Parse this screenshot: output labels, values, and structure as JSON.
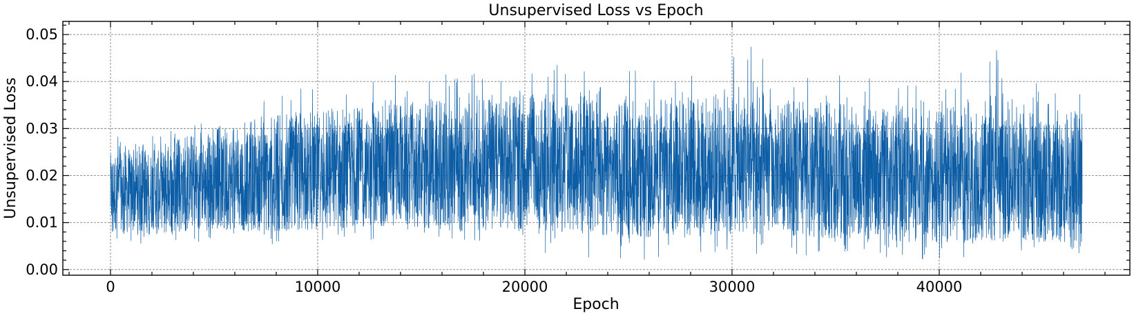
{
  "chart_data": {
    "type": "line",
    "title": "Unsupervised Loss vs Epoch",
    "xlabel": "Epoch",
    "ylabel": "Unsupervised Loss",
    "xlim": [
      -2300,
      49200
    ],
    "ylim": [
      -0.0012,
      0.0528
    ],
    "x_ticks": [
      0,
      10000,
      20000,
      30000,
      40000
    ],
    "x_tick_labels": [
      "0",
      "10000",
      "20000",
      "30000",
      "40000"
    ],
    "y_ticks": [
      0.0,
      0.01,
      0.02,
      0.03,
      0.04,
      0.05
    ],
    "y_tick_labels": [
      "0.00",
      "0.01",
      "0.02",
      "0.03",
      "0.04",
      "0.05"
    ],
    "grid": true,
    "line_color": "#0C5DA5",
    "series": [
      {
        "x_range": [
          0,
          46900
        ],
        "num_points": 46900,
        "envelope": [
          {
            "x": 0,
            "mean": 0.0165,
            "lower": 0.0085,
            "upper": 0.0245,
            "min": 0.006,
            "max": 0.029
          },
          {
            "x": 2000,
            "mean": 0.016,
            "lower": 0.0085,
            "upper": 0.025,
            "min": 0.005,
            "max": 0.031
          },
          {
            "x": 4000,
            "mean": 0.0175,
            "lower": 0.0095,
            "upper": 0.027,
            "min": 0.0055,
            "max": 0.032
          },
          {
            "x": 6000,
            "mean": 0.0185,
            "lower": 0.0095,
            "upper": 0.029,
            "min": 0.006,
            "max": 0.036
          },
          {
            "x": 8000,
            "mean": 0.019,
            "lower": 0.0095,
            "upper": 0.03,
            "min": 0.005,
            "max": 0.039
          },
          {
            "x": 10000,
            "mean": 0.0195,
            "lower": 0.01,
            "upper": 0.031,
            "min": 0.006,
            "max": 0.04
          },
          {
            "x": 12000,
            "mean": 0.0195,
            "lower": 0.0105,
            "upper": 0.032,
            "min": 0.006,
            "max": 0.041
          },
          {
            "x": 14000,
            "mean": 0.0195,
            "lower": 0.011,
            "upper": 0.033,
            "min": 0.0065,
            "max": 0.044
          },
          {
            "x": 16000,
            "mean": 0.0205,
            "lower": 0.0105,
            "upper": 0.033,
            "min": 0.004,
            "max": 0.042
          },
          {
            "x": 18000,
            "mean": 0.0205,
            "lower": 0.0105,
            "upper": 0.034,
            "min": 0.004,
            "max": 0.044
          },
          {
            "x": 20000,
            "mean": 0.0205,
            "lower": 0.0105,
            "upper": 0.034,
            "min": 0.004,
            "max": 0.043
          },
          {
            "x": 22000,
            "mean": 0.02,
            "lower": 0.0105,
            "upper": 0.034,
            "min": 0.003,
            "max": 0.044
          },
          {
            "x": 24000,
            "mean": 0.0195,
            "lower": 0.01,
            "upper": 0.033,
            "min": 0.002,
            "max": 0.042
          },
          {
            "x": 26000,
            "mean": 0.0195,
            "lower": 0.0095,
            "upper": 0.033,
            "min": 0.002,
            "max": 0.043
          },
          {
            "x": 28000,
            "mean": 0.02,
            "lower": 0.0095,
            "upper": 0.034,
            "min": 0.003,
            "max": 0.042
          },
          {
            "x": 30000,
            "mean": 0.0205,
            "lower": 0.0095,
            "upper": 0.035,
            "min": 0.003,
            "max": 0.046
          },
          {
            "x": 31000,
            "mean": 0.021,
            "lower": 0.0095,
            "upper": 0.036,
            "min": 0.003,
            "max": 0.048
          },
          {
            "x": 32000,
            "mean": 0.019,
            "lower": 0.0085,
            "upper": 0.032,
            "min": 0.003,
            "max": 0.044
          },
          {
            "x": 34000,
            "mean": 0.019,
            "lower": 0.0085,
            "upper": 0.033,
            "min": 0.003,
            "max": 0.042
          },
          {
            "x": 36000,
            "mean": 0.0185,
            "lower": 0.0085,
            "upper": 0.032,
            "min": 0.003,
            "max": 0.041
          },
          {
            "x": 38000,
            "mean": 0.018,
            "lower": 0.008,
            "upper": 0.032,
            "min": 0.002,
            "max": 0.04
          },
          {
            "x": 40000,
            "mean": 0.0175,
            "lower": 0.0075,
            "upper": 0.031,
            "min": 0.002,
            "max": 0.039
          },
          {
            "x": 42500,
            "mean": 0.0185,
            "lower": 0.0075,
            "upper": 0.032,
            "min": 0.003,
            "max": 0.05
          },
          {
            "x": 44000,
            "mean": 0.018,
            "lower": 0.0075,
            "upper": 0.032,
            "min": 0.004,
            "max": 0.045
          },
          {
            "x": 46900,
            "mean": 0.0175,
            "lower": 0.007,
            "upper": 0.031,
            "min": 0.003,
            "max": 0.039
          }
        ]
      }
    ]
  }
}
